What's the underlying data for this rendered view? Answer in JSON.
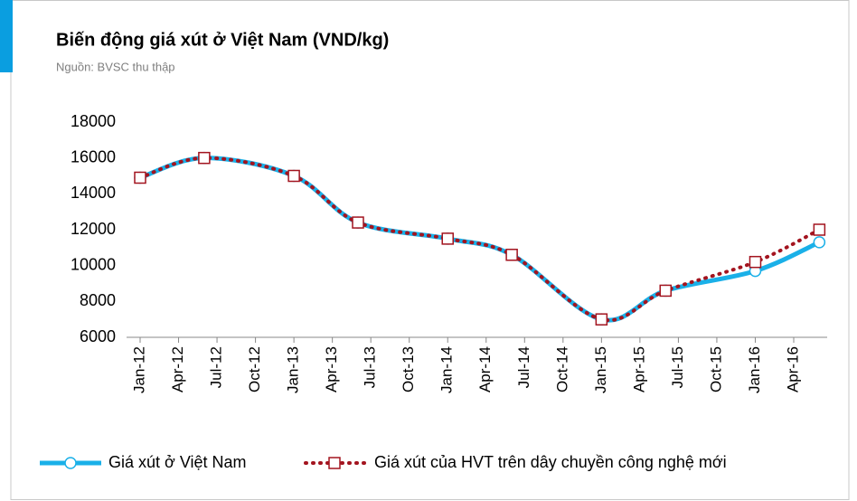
{
  "chart_data": {
    "type": "line",
    "title": "Biến động giá xút ở Việt Nam (VND/kg)",
    "subtitle": "Nguồn: BVSC thu thập",
    "x": [
      "Jan-12",
      "Jun-12",
      "Jan-13",
      "Jun-13",
      "Jan-14",
      "Jun-14",
      "Jan-15",
      "Jun-15",
      "Jan-16",
      "Jun-16"
    ],
    "series": [
      {
        "name": "Giá xút ở Việt Nam",
        "color": "#1ab0e8",
        "values": [
          14900,
          16000,
          15000,
          12400,
          11500,
          10600,
          7000,
          8600,
          9700,
          11300
        ]
      },
      {
        "name": "Giá xút của HVT trên dây chuyền công nghệ mới",
        "color": "#a3141f",
        "values": [
          14900,
          16000,
          15000,
          12400,
          11500,
          10600,
          7000,
          8600,
          10200,
          12000
        ]
      }
    ],
    "xticks": [
      "Jan-12",
      "Apr-12",
      "Jul-12",
      "Oct-12",
      "Jan-13",
      "Apr-13",
      "Jul-13",
      "Oct-13",
      "Jan-14",
      "Apr-14",
      "Jul-14",
      "Oct-14",
      "Jan-15",
      "Apr-15",
      "Jul-15",
      "Oct-15",
      "Jan-16",
      "Apr-16"
    ],
    "ylim": [
      6000,
      18000
    ],
    "yticks": [
      6000,
      8000,
      10000,
      12000,
      14000,
      16000,
      18000
    ],
    "grid": false,
    "legend": "bottom"
  }
}
